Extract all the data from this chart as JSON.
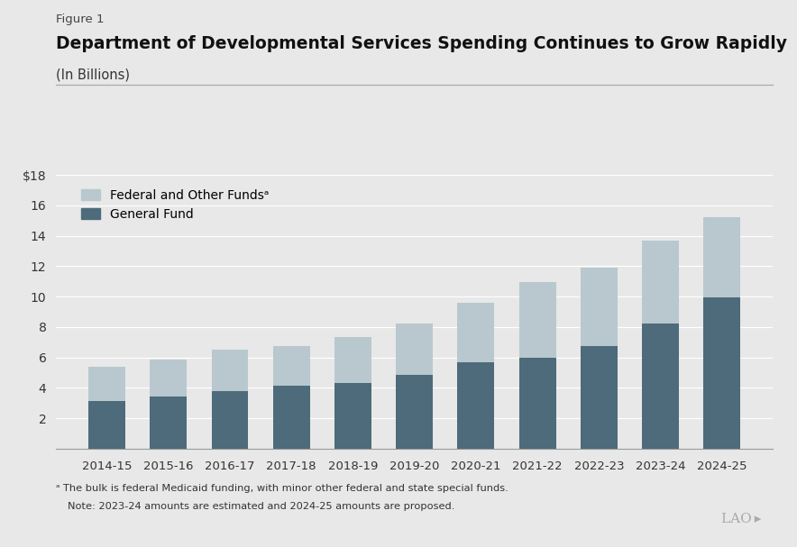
{
  "figure_label": "Figure 1",
  "title": "Department of Developmental Services Spending Continues to Grow Rapidly",
  "subtitle": "(In Billions)",
  "categories": [
    "2014-15",
    "2015-16",
    "2016-17",
    "2017-18",
    "2018-19",
    "2019-20",
    "2020-21",
    "2021-22",
    "2022-23",
    "2023-24",
    "2024-25"
  ],
  "general_fund": [
    3.1,
    3.45,
    3.8,
    4.15,
    4.3,
    4.85,
    5.65,
    5.95,
    6.75,
    8.2,
    9.95
  ],
  "federal_other": [
    2.3,
    2.4,
    2.7,
    2.6,
    3.05,
    3.4,
    3.95,
    5.0,
    5.15,
    5.5,
    5.3
  ],
  "general_fund_color": "#4d6b7a",
  "federal_other_color": "#b8c8ce",
  "background_color": "#e8e8e8",
  "ylim": [
    0,
    18
  ],
  "yticks": [
    0,
    2,
    4,
    6,
    8,
    10,
    12,
    14,
    16,
    18
  ],
  "ytick_labels": [
    "",
    "2",
    "4",
    "6",
    "8",
    "10",
    "12",
    "14",
    "16",
    "$18"
  ],
  "footnote_a": "ᵃ The bulk is federal Medicaid funding, with minor other federal and state special funds.",
  "footnote_note": "Note: 2023-24 amounts are estimated and 2024-25 amounts are proposed.",
  "legend_federal": "Federal and Other Fundsᵃ",
  "legend_general": "General Fund"
}
